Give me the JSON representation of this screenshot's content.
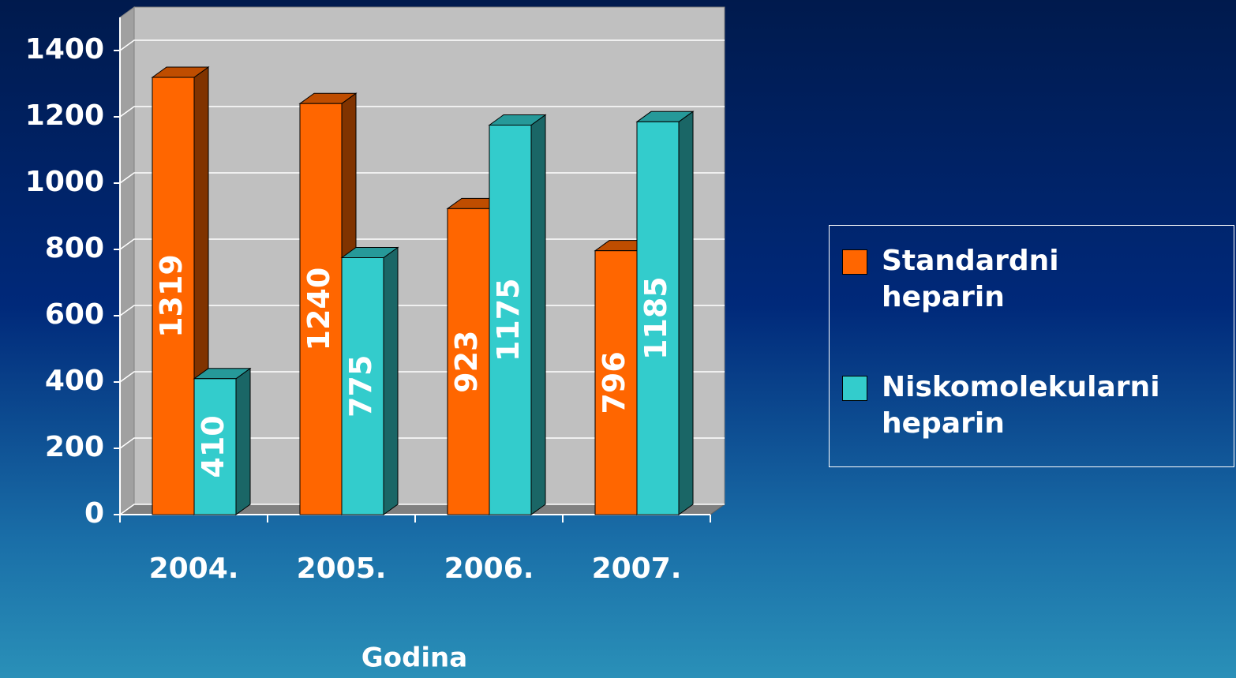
{
  "chart_data": {
    "type": "bar3d",
    "x_label": "Godina",
    "categories": [
      "2004.",
      "2005.",
      "2006.",
      "2007."
    ],
    "series": [
      {
        "name": "Standardni heparin",
        "color": "#ff6600",
        "values": [
          1319,
          1240,
          923,
          796
        ]
      },
      {
        "name": "Niskomolekularni heparin",
        "color": "#33cccc",
        "values": [
          410,
          775,
          1175,
          1185
        ]
      }
    ],
    "ylim": [
      0,
      1500
    ],
    "yticks": [
      0,
      200,
      400,
      600,
      800,
      1000,
      1200,
      1400
    ],
    "grid": true,
    "legend": "right"
  }
}
